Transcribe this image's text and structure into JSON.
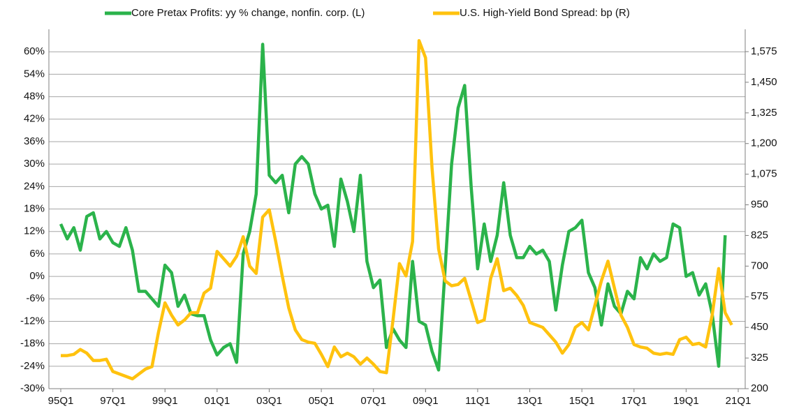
{
  "chart_data": {
    "type": "line",
    "categories": [
      "95Q1",
      null,
      null,
      null,
      null,
      null,
      null,
      null,
      "97Q1",
      null,
      null,
      null,
      null,
      null,
      null,
      null,
      "99Q1",
      null,
      null,
      null,
      null,
      null,
      null,
      null,
      "01Q1",
      null,
      null,
      null,
      null,
      null,
      null,
      null,
      "03Q1",
      null,
      null,
      null,
      null,
      null,
      null,
      null,
      "05Q1",
      null,
      null,
      null,
      null,
      null,
      null,
      null,
      "07Q1",
      null,
      null,
      null,
      null,
      null,
      null,
      null,
      "09Q1",
      null,
      null,
      null,
      null,
      null,
      null,
      null,
      "11Q1",
      null,
      null,
      null,
      null,
      null,
      null,
      null,
      "13Q1",
      null,
      null,
      null,
      null,
      null,
      null,
      null,
      "15Q1",
      null,
      null,
      null,
      null,
      null,
      null,
      null,
      "17Q1",
      null,
      null,
      null,
      null,
      null,
      null,
      null,
      "19Q1",
      null,
      null,
      null,
      null,
      null,
      null,
      null,
      "21Q1"
    ],
    "series": [
      {
        "name": "Core Pretax Profits: yy % change, nonfin. corp. (L)",
        "color": "#2bb34b",
        "axis": "y",
        "values": [
          14,
          10,
          13,
          7,
          16,
          17,
          10,
          12,
          9,
          8,
          13,
          7,
          -4,
          -4,
          -6,
          -8,
          3,
          1,
          -8,
          -5,
          -10,
          -10.5,
          -10.5,
          -17,
          -21,
          -19,
          -18,
          -23,
          6,
          12,
          22,
          62,
          27,
          25,
          27,
          17,
          30,
          32,
          30,
          22,
          18,
          19,
          8,
          26,
          20,
          12,
          27,
          4,
          -3,
          -1,
          -19,
          -14,
          -17,
          -19,
          4,
          -12,
          -13,
          -20,
          -25,
          2,
          30,
          45,
          51,
          24,
          2,
          14,
          4,
          11,
          25,
          11,
          5,
          5,
          8,
          6,
          7,
          4,
          -9,
          3,
          12,
          13,
          15,
          1,
          -3,
          -13,
          -2,
          -8,
          -10,
          -4,
          -6,
          5,
          2,
          6,
          4,
          5,
          14,
          13,
          0,
          1,
          -5,
          -2,
          -10,
          -24,
          11,
          null,
          null
        ]
      },
      {
        "name": "U.S. High-Yield Bond Spread: bp (R)",
        "color": "#ffc20e",
        "axis": "y2",
        "values": [
          335,
          335,
          340,
          360,
          345,
          315,
          315,
          320,
          270,
          260,
          250,
          240,
          260,
          280,
          290,
          430,
          550,
          500,
          460,
          480,
          510,
          510,
          590,
          610,
          760,
          730,
          700,
          740,
          820,
          700,
          670,
          900,
          930,
          800,
          660,
          530,
          440,
          400,
          390,
          385,
          340,
          290,
          370,
          330,
          345,
          330,
          300,
          325,
          300,
          270,
          265,
          480,
          710,
          660,
          800,
          1620,
          1550,
          1100,
          770,
          640,
          620,
          625,
          650,
          560,
          470,
          480,
          650,
          730,
          600,
          610,
          580,
          540,
          470,
          460,
          450,
          420,
          390,
          345,
          380,
          450,
          470,
          440,
          540,
          640,
          720,
          610,
          500,
          450,
          380,
          370,
          365,
          345,
          340,
          345,
          340,
          400,
          410,
          380,
          385,
          370,
          500,
          690,
          510,
          460,
          null
        ]
      }
    ],
    "ylim": [
      -30,
      66
    ],
    "yticks": [
      {
        "value": -30,
        "label": "-30%"
      },
      {
        "value": -24,
        "label": "-24%"
      },
      {
        "value": -18,
        "label": "-18%"
      },
      {
        "value": -12,
        "label": "-12%"
      },
      {
        "value": -6,
        "label": "-6%"
      },
      {
        "value": 0,
        "label": "0%"
      },
      {
        "value": 6,
        "label": "6%"
      },
      {
        "value": 12,
        "label": "12%"
      },
      {
        "value": 18,
        "label": "18%"
      },
      {
        "value": 24,
        "label": "24%"
      },
      {
        "value": 30,
        "label": "30%"
      },
      {
        "value": 36,
        "label": "36%"
      },
      {
        "value": 42,
        "label": "42%"
      },
      {
        "value": 48,
        "label": "48%"
      },
      {
        "value": 54,
        "label": "54%"
      },
      {
        "value": 60,
        "label": "60%"
      }
    ],
    "y2lim": [
      200,
      1666
    ],
    "y2ticks": [
      200,
      325,
      450,
      575,
      700,
      825,
      950,
      {
        "value": 1075,
        "label": "1,075"
      },
      {
        "value": 1200,
        "label": "1,200"
      },
      {
        "value": 1325,
        "label": "1,325"
      },
      {
        "value": 1450,
        "label": "1,450"
      },
      {
        "value": 1575,
        "label": "1,575"
      }
    ],
    "grid": true
  }
}
